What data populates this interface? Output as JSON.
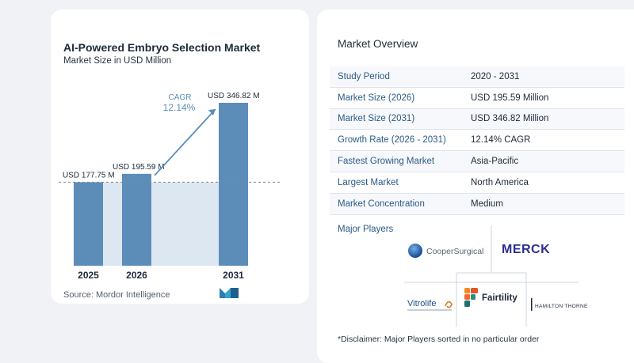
{
  "chart_data": {
    "type": "bar",
    "title": "AI-Powered Embryo Selection Market",
    "subtitle": "Market Size in USD Million",
    "categories": [
      "2025",
      "2026",
      "2031"
    ],
    "values": [
      177.75,
      195.59,
      346.82
    ],
    "data_labels": [
      "USD 177.75 M",
      "USD 195.59 M",
      "USD 346.82 M"
    ],
    "cagr_label": "CAGR",
    "cagr_value": "12.14%",
    "ylim": [
      0,
      346.82
    ],
    "colors": {
      "bar": "#5b8db8",
      "bar_top": "#6a9cc6",
      "shade": "#dde7f1",
      "arrow": "#5b8db8",
      "cagr_text": "#5b8db8"
    },
    "source": "Source: Mordor Intelligence"
  },
  "overview": {
    "title": "Market Overview",
    "rows": [
      {
        "label": "Study Period",
        "value": "2020 - 2031"
      },
      {
        "label": "Market Size (2026)",
        "value": "USD 195.59 Million"
      },
      {
        "label": "Market Size (2031)",
        "value": "USD 346.82 Million"
      },
      {
        "label": "Growth Rate (2026 - 2031)",
        "value": "12.14% CAGR"
      },
      {
        "label": "Fastest Growing Market",
        "value": "Asia-Pacific"
      },
      {
        "label": "Largest Market",
        "value": "North America"
      },
      {
        "label": "Market Concentration",
        "value": "Medium"
      }
    ]
  },
  "players": {
    "title": "Major Players",
    "logos": [
      {
        "name": "CooperSurgical",
        "text": "CooperSurgical",
        "icon": "blue-globe-icon"
      },
      {
        "name": "Merck",
        "text": "MERCK",
        "icon": ""
      },
      {
        "name": "Vitrolife",
        "text": "Vitrolife",
        "icon": "swirl-icon"
      },
      {
        "name": "Fairtility",
        "text": "Fairtility",
        "icon": "f-mark-icon"
      },
      {
        "name": "Hamilton Thorne",
        "text": "HAMILTON THORNE",
        "icon": ""
      }
    ],
    "disclaimer": "*Disclaimer: Major Players sorted in no particular order"
  }
}
